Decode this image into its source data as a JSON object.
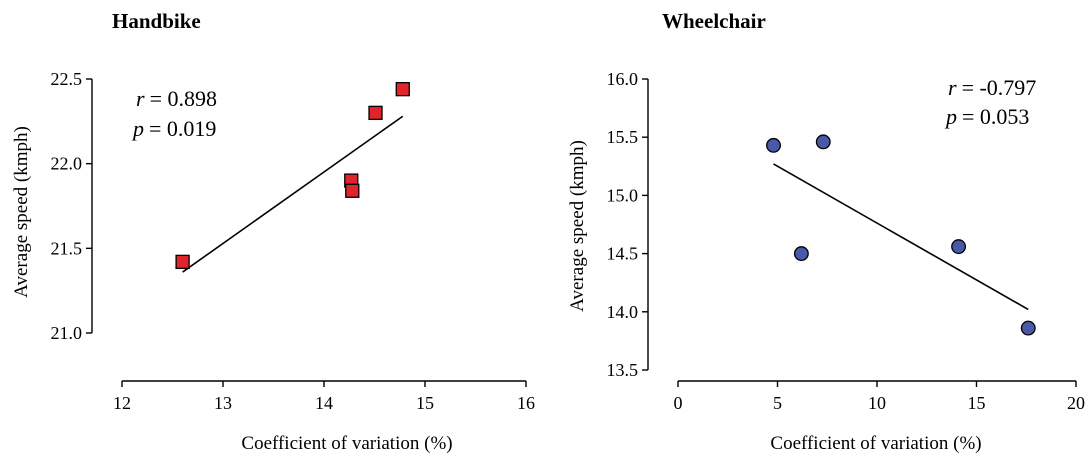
{
  "chart_data": [
    {
      "type": "scatter",
      "title": "Handbike",
      "xlabel": "Coefficient of variation (%)",
      "ylabel": "Average speed (kmph)",
      "xlim": [
        12,
        16
      ],
      "ylim": [
        21.0,
        22.5
      ],
      "xticks": [
        "12",
        "13",
        "14",
        "15",
        "16"
      ],
      "yticks": [
        "21.0",
        "21.5",
        "22.0",
        "22.5"
      ],
      "marker": "square",
      "marker_color": "#e0242b",
      "points": [
        {
          "x": 12.6,
          "y": 21.42
        },
        {
          "x": 14.27,
          "y": 21.9
        },
        {
          "x": 14.28,
          "y": 21.84
        },
        {
          "x": 14.51,
          "y": 22.3
        },
        {
          "x": 14.78,
          "y": 22.44
        }
      ],
      "fit_line": {
        "x": [
          12.6,
          14.78
        ],
        "y": [
          21.36,
          22.28
        ]
      },
      "annotation": {
        "r_symbol": "r",
        "r_value": "= 0.898",
        "p_symbol": "p",
        "p_value": "= 0.019",
        "placement": "top-left"
      },
      "grid": false,
      "legend": "none"
    },
    {
      "type": "scatter",
      "title": "Wheelchair",
      "xlabel": "Coefficient of variation (%)",
      "ylabel": "Average speed (kmph)",
      "xlim": [
        0,
        20
      ],
      "ylim": [
        13.5,
        16.0
      ],
      "xticks": [
        "0",
        "5",
        "10",
        "15",
        "20"
      ],
      "yticks": [
        "13.5",
        "14.0",
        "14.5",
        "15.0",
        "15.5",
        "16.0"
      ],
      "marker": "circle",
      "marker_color": "#4a58a8",
      "points": [
        {
          "x": 4.8,
          "y": 15.43
        },
        {
          "x": 7.3,
          "y": 15.46
        },
        {
          "x": 6.2,
          "y": 14.5
        },
        {
          "x": 14.1,
          "y": 14.56
        },
        {
          "x": 17.6,
          "y": 13.86
        }
      ],
      "fit_line": {
        "x": [
          4.8,
          17.6
        ],
        "y": [
          15.27,
          14.02
        ]
      },
      "annotation": {
        "r_symbol": "r",
        "r_value": "= -0.797",
        "p_symbol": "p",
        "p_value": "= 0.053",
        "placement": "top-right"
      },
      "grid": false,
      "legend": "none"
    }
  ]
}
